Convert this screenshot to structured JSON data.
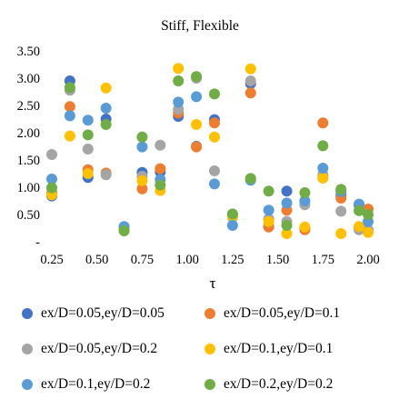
{
  "chart_data": {
    "type": "scatter",
    "title": "Stiff, Flexible",
    "xlabel": "τ",
    "ylabel": "",
    "xlim": [
      0.25,
      2.0
    ],
    "ylim": [
      0,
      3.5
    ],
    "x_ticks": [
      "0.25",
      "0.50",
      "0.75",
      "1.00",
      "1.25",
      "1.50",
      "1.75",
      "2.00"
    ],
    "y_ticks": [
      "-",
      "0.50",
      "1.00",
      "1.50",
      "2.00",
      "2.50",
      "3.00",
      "3.50"
    ],
    "grid": false,
    "legend_position": "bottom",
    "x": [
      0.25,
      0.35,
      0.45,
      0.55,
      0.65,
      0.75,
      0.85,
      0.95,
      1.05,
      1.15,
      1.25,
      1.35,
      1.45,
      1.55,
      1.65,
      1.75,
      1.85,
      1.95,
      2.0
    ],
    "series": [
      {
        "name": "ex/D=0.05,ey/D=0.05",
        "color": "#4472c4",
        "values": [
          0.84,
          2.95,
          1.18,
          2.25,
          0.26,
          1.27,
          1.28,
          2.3,
          1.75,
          2.24,
          0.5,
          2.9,
          0.28,
          0.93,
          0.25,
          1.17,
          0.85,
          0.67,
          0.2
        ]
      },
      {
        "name": "ex/D=0.05,ey/D=0.1",
        "color": "#ed7d31",
        "values": [
          0.9,
          2.48,
          1.32,
          1.26,
          0.22,
          0.97,
          1.34,
          2.36,
          1.74,
          2.18,
          0.48,
          2.73,
          0.27,
          0.58,
          0.22,
          2.18,
          0.8,
          0.27,
          0.6
        ]
      },
      {
        "name": "ex/D=0.05,ey/D=0.2",
        "color": "#a5a5a5",
        "values": [
          1.6,
          2.78,
          1.7,
          1.23,
          0.22,
          1.2,
          1.77,
          2.43,
          3.0,
          1.3,
          0.45,
          2.95,
          0.42,
          0.37,
          0.68,
          1.23,
          0.56,
          0.22,
          0.22
        ]
      },
      {
        "name": "ex/D=0.1,ey/D=0.1",
        "color": "#ffc000",
        "values": [
          0.86,
          1.94,
          1.25,
          2.82,
          0.22,
          1.12,
          0.94,
          3.18,
          2.15,
          1.92,
          0.47,
          3.17,
          0.37,
          0.15,
          0.27,
          1.17,
          0.15,
          0.28,
          0.17
        ]
      },
      {
        "name": "ex/D=0.1,ey/D=0.2",
        "color": "#5b9bd5",
        "values": [
          1.15,
          2.31,
          2.23,
          2.45,
          0.28,
          1.74,
          1.14,
          2.56,
          2.66,
          1.06,
          0.3,
          1.13,
          0.58,
          0.71,
          0.75,
          1.35,
          0.92,
          0.69,
          0.37
        ]
      },
      {
        "name": "ex/D=0.2,ey/D=0.2",
        "color": "#70ad47",
        "values": [
          0.99,
          2.83,
          1.96,
          2.15,
          0.2,
          1.92,
          1.04,
          2.95,
          3.03,
          2.71,
          0.51,
          1.16,
          0.93,
          0.3,
          0.9,
          1.76,
          0.96,
          0.57,
          0.5
        ]
      }
    ]
  }
}
